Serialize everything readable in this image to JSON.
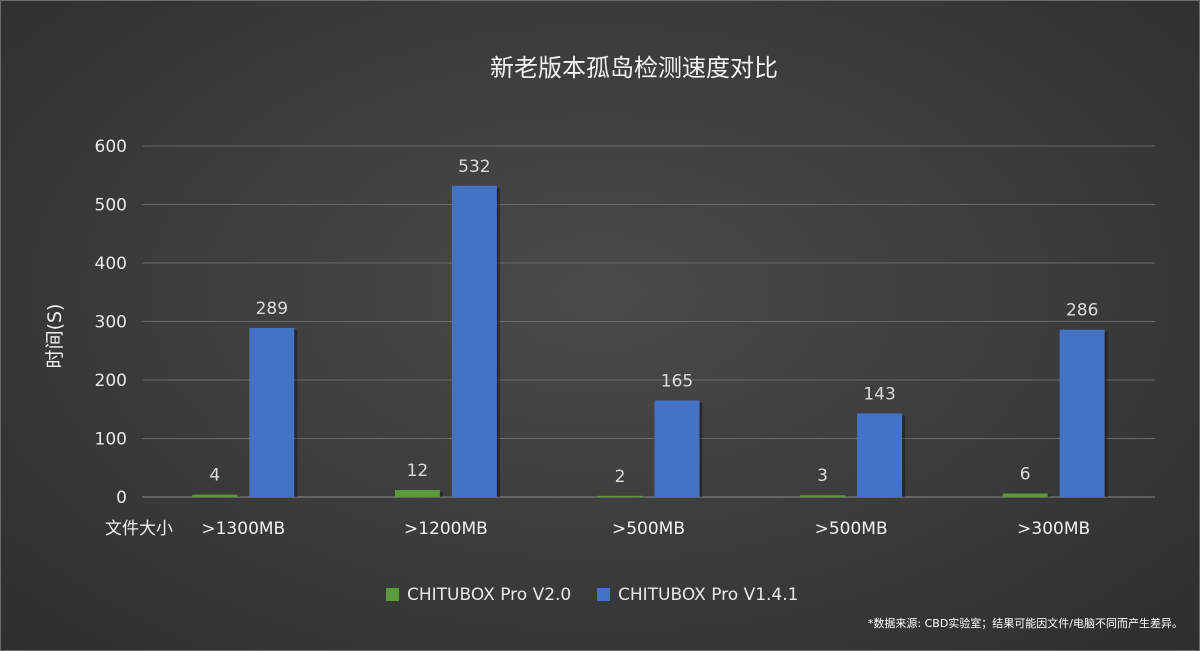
{
  "chart_data": {
    "type": "bar",
    "title": "新老版本孤岛检测速度对比",
    "ylabel": "时间(S)",
    "xlabel": "文件大小",
    "categories": [
      ">1300MB",
      ">1200MB",
      ">500MB",
      ">500MB",
      ">300MB"
    ],
    "series": [
      {
        "name": "CHITUBOX Pro V2.0",
        "values": [
          4,
          12,
          2,
          3,
          6
        ],
        "color": "#5b9a3a"
      },
      {
        "name": "CHITUBOX Pro V1.4.1",
        "values": [
          289,
          532,
          165,
          143,
          286
        ],
        "color": "#4472c4"
      }
    ],
    "ylim": [
      0,
      600
    ],
    "yticks": [
      0,
      100,
      200,
      300,
      400,
      500,
      600
    ],
    "grid": true,
    "legend": "bottom-center"
  },
  "footnote": "*数据来源: CBD实验室；结果可能因文件/电脑不同而产生差异。"
}
